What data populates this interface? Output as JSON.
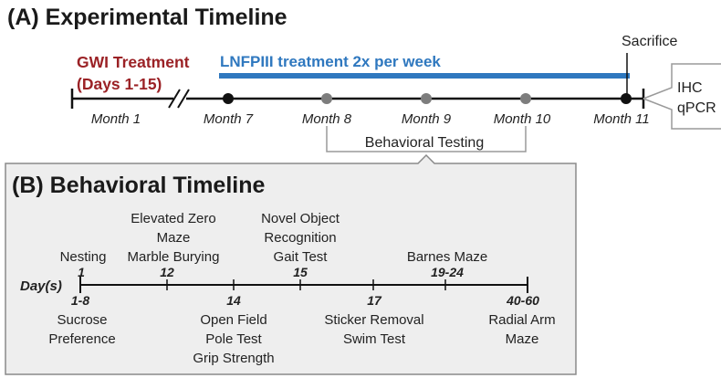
{
  "section_a": {
    "title": "(A) Experimental Timeline",
    "gwi_line1": "GWI Treatment",
    "gwi_line2": "(Days 1-15)",
    "lnfp": "LNFPIII treatment 2x per week",
    "sacrifice": "Sacrifice",
    "endpoints": [
      "IHC",
      "qPCR"
    ],
    "months": [
      "Month 1",
      "Month 7",
      "Month 8",
      "Month 9",
      "Month 10",
      "Month 11"
    ],
    "behavioral_testing": "Behavioral Testing",
    "colors": {
      "gwi": "#9b2226",
      "lnfp": "#2f78bf",
      "dot_dark": "#111111",
      "dot_gray": "#7d7d7d"
    }
  },
  "section_b": {
    "title": "(B) Behavioral Timeline",
    "axis_label": "Day(s)",
    "above": [
      {
        "day": "1",
        "lines": [
          "Nesting"
        ]
      },
      {
        "day": "12",
        "lines": [
          "Elevated Zero",
          "Maze",
          "Marble Burying"
        ]
      },
      {
        "day": "15",
        "lines": [
          "Novel Object",
          "Recognition",
          "Gait Test"
        ]
      },
      {
        "day": "19-24",
        "lines": [
          "Barnes Maze"
        ]
      }
    ],
    "below": [
      {
        "day": "1-8",
        "lines": [
          "Sucrose",
          "Preference"
        ]
      },
      {
        "day": "14",
        "lines": [
          "Open Field",
          "Pole Test",
          "Grip Strength"
        ]
      },
      {
        "day": "17",
        "lines": [
          "Sticker Removal",
          "Swim Test"
        ]
      },
      {
        "day": "40-60",
        "lines": [
          "Radial Arm",
          "Maze"
        ]
      }
    ],
    "panel_color": "#eeeeee"
  }
}
